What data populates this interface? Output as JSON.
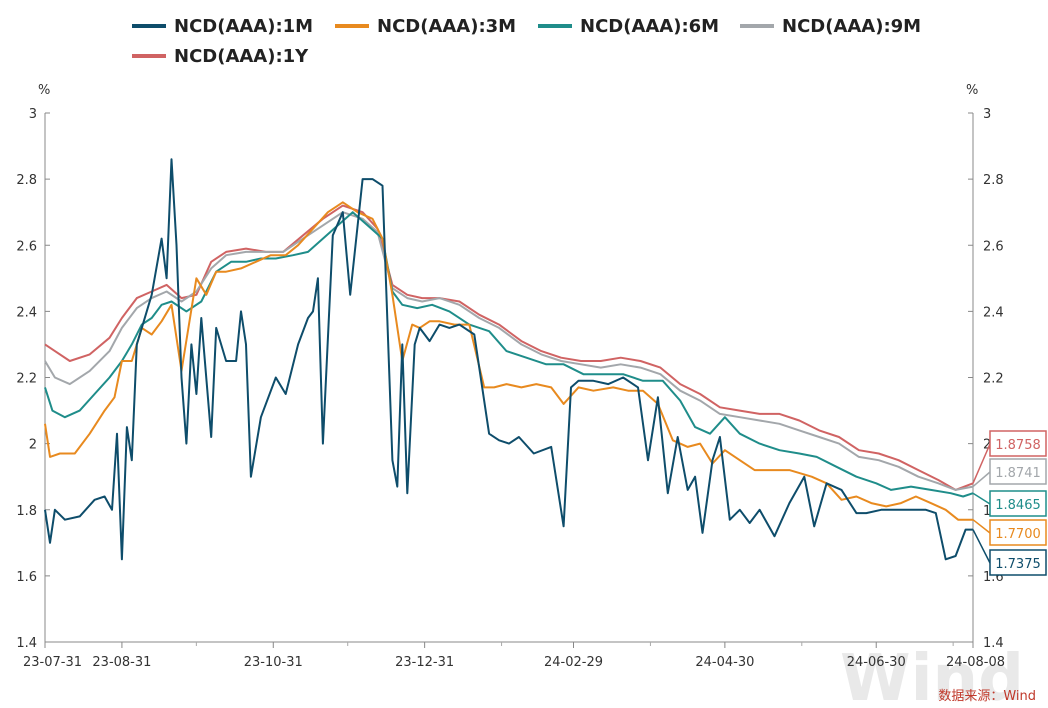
{
  "chart_data": {
    "type": "line",
    "title": "",
    "y_unit": "%",
    "ylim": [
      1.4,
      3.0
    ],
    "y_ticks": [
      "1.4",
      "1.6",
      "1.8",
      "2",
      "2.2",
      "2.4",
      "2.6",
      "2.8",
      "3"
    ],
    "x_tick_labels": [
      "23-07-31",
      "23-08-31",
      "23-10-31",
      "23-12-31",
      "24-02-29",
      "24-04-30",
      "24-06-30",
      "24-08-08"
    ],
    "x_tick_dates": [
      "2023-07-31",
      "2023-08-31",
      "2023-10-31",
      "2023-12-31",
      "2024-02-29",
      "2024-04-30",
      "2024-06-30",
      "2024-08-08"
    ],
    "x_range": [
      "2023-07-31",
      "2024-08-08"
    ],
    "legend_position": "top",
    "grid": false,
    "series": [
      {
        "name": "NCD(AAA):1M",
        "color": "#0e4d6b",
        "end_label": "1.7375",
        "x": [
          "2023-07-31",
          "2023-08-02",
          "2023-08-04",
          "2023-08-08",
          "2023-08-14",
          "2023-08-20",
          "2023-08-24",
          "2023-08-27",
          "2023-08-29",
          "2023-08-31",
          "2023-09-02",
          "2023-09-04",
          "2023-09-06",
          "2023-09-08",
          "2023-09-12",
          "2023-09-16",
          "2023-09-18",
          "2023-09-20",
          "2023-09-22",
          "2023-09-24",
          "2023-09-26",
          "2023-09-28",
          "2023-09-30",
          "2023-10-02",
          "2023-10-06",
          "2023-10-08",
          "2023-10-12",
          "2023-10-16",
          "2023-10-18",
          "2023-10-20",
          "2023-10-22",
          "2023-10-26",
          "2023-11-01",
          "2023-11-05",
          "2023-11-10",
          "2023-11-14",
          "2023-11-16",
          "2023-11-18",
          "2023-11-20",
          "2023-11-24",
          "2023-11-28",
          "2023-12-01",
          "2023-12-06",
          "2023-12-10",
          "2023-12-14",
          "2023-12-18",
          "2023-12-20",
          "2023-12-22",
          "2023-12-24",
          "2023-12-27",
          "2023-12-29",
          "2024-01-02",
          "2024-01-06",
          "2024-01-10",
          "2024-01-14",
          "2024-01-20",
          "2024-01-26",
          "2024-01-30",
          "2024-02-03",
          "2024-02-07",
          "2024-02-13",
          "2024-02-20",
          "2024-02-25",
          "2024-02-28",
          "2024-03-02",
          "2024-03-08",
          "2024-03-14",
          "2024-03-20",
          "2024-03-26",
          "2024-03-30",
          "2024-04-03",
          "2024-04-07",
          "2024-04-11",
          "2024-04-15",
          "2024-04-18",
          "2024-04-21",
          "2024-04-25",
          "2024-04-28",
          "2024-05-02",
          "2024-05-06",
          "2024-05-10",
          "2024-05-14",
          "2024-05-20",
          "2024-05-26",
          "2024-06-01",
          "2024-06-05",
          "2024-06-10",
          "2024-06-16",
          "2024-06-22",
          "2024-06-26",
          "2024-07-02",
          "2024-07-08",
          "2024-07-14",
          "2024-07-20",
          "2024-07-24",
          "2024-07-28",
          "2024-08-01",
          "2024-08-05",
          "2024-08-08"
        ],
        "y": [
          1.8,
          1.7,
          1.8,
          1.77,
          1.78,
          1.83,
          1.84,
          1.8,
          2.03,
          1.65,
          2.05,
          1.95,
          2.3,
          2.35,
          2.45,
          2.62,
          2.5,
          2.86,
          2.6,
          2.2,
          2.0,
          2.3,
          2.15,
          2.38,
          2.02,
          2.35,
          2.25,
          2.25,
          2.4,
          2.3,
          1.9,
          2.08,
          2.2,
          2.15,
          2.3,
          2.38,
          2.4,
          2.5,
          2.0,
          2.63,
          2.7,
          2.45,
          2.8,
          2.8,
          2.78,
          1.95,
          1.87,
          2.3,
          1.85,
          2.3,
          2.35,
          2.31,
          2.36,
          2.35,
          2.36,
          2.33,
          2.03,
          2.01,
          2.0,
          2.02,
          1.97,
          1.99,
          1.75,
          2.17,
          2.19,
          2.19,
          2.18,
          2.2,
          2.17,
          1.95,
          2.14,
          1.85,
          2.02,
          1.86,
          1.9,
          1.73,
          1.95,
          2.02,
          1.77,
          1.8,
          1.76,
          1.8,
          1.72,
          1.82,
          1.9,
          1.75,
          1.88,
          1.86,
          1.79,
          1.79,
          1.8,
          1.8,
          1.8,
          1.8,
          1.79,
          1.65,
          1.66,
          1.74,
          1.74
        ]
      },
      {
        "name": "NCD(AAA):3M",
        "color": "#e88a1f",
        "end_label": "1.7700",
        "x": [
          "2023-07-31",
          "2023-08-02",
          "2023-08-06",
          "2023-08-12",
          "2023-08-18",
          "2023-08-24",
          "2023-08-28",
          "2023-08-31",
          "2023-09-04",
          "2023-09-08",
          "2023-09-12",
          "2023-09-16",
          "2023-09-20",
          "2023-09-24",
          "2023-09-30",
          "2023-10-04",
          "2023-10-08",
          "2023-10-12",
          "2023-10-18",
          "2023-10-24",
          "2023-10-30",
          "2023-11-05",
          "2023-11-10",
          "2023-11-16",
          "2023-11-22",
          "2023-11-28",
          "2023-12-04",
          "2023-12-10",
          "2023-12-14",
          "2023-12-18",
          "2023-12-22",
          "2023-12-26",
          "2023-12-29",
          "2024-01-02",
          "2024-01-06",
          "2024-01-12",
          "2024-01-18",
          "2024-01-24",
          "2024-01-28",
          "2024-02-02",
          "2024-02-08",
          "2024-02-14",
          "2024-02-20",
          "2024-02-25",
          "2024-03-02",
          "2024-03-08",
          "2024-03-16",
          "2024-03-22",
          "2024-03-28",
          "2024-04-03",
          "2024-04-09",
          "2024-04-15",
          "2024-04-20",
          "2024-04-25",
          "2024-04-30",
          "2024-05-06",
          "2024-05-12",
          "2024-05-18",
          "2024-05-26",
          "2024-06-04",
          "2024-06-10",
          "2024-06-16",
          "2024-06-22",
          "2024-06-28",
          "2024-07-04",
          "2024-07-10",
          "2024-07-16",
          "2024-07-22",
          "2024-07-28",
          "2024-08-02",
          "2024-08-08"
        ],
        "y": [
          2.06,
          1.96,
          1.97,
          1.97,
          2.03,
          2.1,
          2.14,
          2.25,
          2.25,
          2.35,
          2.33,
          2.37,
          2.42,
          2.22,
          2.5,
          2.45,
          2.52,
          2.52,
          2.53,
          2.55,
          2.57,
          2.57,
          2.6,
          2.65,
          2.7,
          2.73,
          2.7,
          2.68,
          2.62,
          2.45,
          2.25,
          2.36,
          2.35,
          2.37,
          2.37,
          2.36,
          2.36,
          2.17,
          2.17,
          2.18,
          2.17,
          2.18,
          2.17,
          2.12,
          2.17,
          2.16,
          2.17,
          2.16,
          2.16,
          2.12,
          2.01,
          1.99,
          2.0,
          1.94,
          1.98,
          1.95,
          1.92,
          1.92,
          1.92,
          1.9,
          1.88,
          1.83,
          1.84,
          1.82,
          1.81,
          1.82,
          1.84,
          1.82,
          1.8,
          1.77,
          1.77
        ]
      },
      {
        "name": "NCD(AAA):6M",
        "color": "#1f8d8a",
        "end_label": "1.8465",
        "x": [
          "2023-07-31",
          "2023-08-03",
          "2023-08-08",
          "2023-08-14",
          "2023-08-20",
          "2023-08-26",
          "2023-08-31",
          "2023-09-04",
          "2023-09-08",
          "2023-09-12",
          "2023-09-16",
          "2023-09-20",
          "2023-09-26",
          "2023-10-02",
          "2023-10-08",
          "2023-10-14",
          "2023-10-20",
          "2023-10-26",
          "2023-11-01",
          "2023-11-08",
          "2023-11-14",
          "2023-11-20",
          "2023-11-26",
          "2023-12-02",
          "2023-12-08",
          "2023-12-14",
          "2023-12-18",
          "2023-12-22",
          "2023-12-28",
          "2024-01-03",
          "2024-01-10",
          "2024-01-18",
          "2024-01-26",
          "2024-02-02",
          "2024-02-10",
          "2024-02-18",
          "2024-02-25",
          "2024-03-04",
          "2024-03-12",
          "2024-03-20",
          "2024-03-28",
          "2024-04-05",
          "2024-04-12",
          "2024-04-18",
          "2024-04-24",
          "2024-04-30",
          "2024-05-06",
          "2024-05-14",
          "2024-05-22",
          "2024-05-30",
          "2024-06-06",
          "2024-06-14",
          "2024-06-22",
          "2024-06-30",
          "2024-07-06",
          "2024-07-14",
          "2024-07-22",
          "2024-07-30",
          "2024-08-04",
          "2024-08-08"
        ],
        "y": [
          2.17,
          2.1,
          2.08,
          2.1,
          2.15,
          2.2,
          2.25,
          2.3,
          2.36,
          2.38,
          2.42,
          2.43,
          2.4,
          2.43,
          2.52,
          2.55,
          2.55,
          2.56,
          2.56,
          2.57,
          2.58,
          2.62,
          2.66,
          2.7,
          2.66,
          2.62,
          2.46,
          2.42,
          2.41,
          2.42,
          2.4,
          2.36,
          2.34,
          2.28,
          2.26,
          2.24,
          2.24,
          2.21,
          2.21,
          2.21,
          2.19,
          2.19,
          2.13,
          2.05,
          2.03,
          2.08,
          2.03,
          2.0,
          1.98,
          1.97,
          1.96,
          1.93,
          1.9,
          1.88,
          1.86,
          1.87,
          1.86,
          1.85,
          1.84,
          1.85
        ]
      },
      {
        "name": "NCD(AAA):9M",
        "color": "#a3a7ab",
        "end_label": "1.8741",
        "x": [
          "2023-07-31",
          "2023-08-04",
          "2023-08-10",
          "2023-08-18",
          "2023-08-26",
          "2023-08-31",
          "2023-09-06",
          "2023-09-12",
          "2023-09-18",
          "2023-09-24",
          "2023-09-30",
          "2023-10-06",
          "2023-10-12",
          "2023-10-20",
          "2023-10-28",
          "2023-11-04",
          "2023-11-12",
          "2023-11-20",
          "2023-11-28",
          "2023-12-06",
          "2023-12-12",
          "2023-12-18",
          "2023-12-24",
          "2023-12-30",
          "2024-01-06",
          "2024-01-14",
          "2024-01-22",
          "2024-01-30",
          "2024-02-08",
          "2024-02-16",
          "2024-02-24",
          "2024-03-03",
          "2024-03-11",
          "2024-03-19",
          "2024-03-27",
          "2024-04-04",
          "2024-04-12",
          "2024-04-20",
          "2024-04-28",
          "2024-05-06",
          "2024-05-14",
          "2024-05-22",
          "2024-05-30",
          "2024-06-07",
          "2024-06-15",
          "2024-06-23",
          "2024-07-01",
          "2024-07-09",
          "2024-07-17",
          "2024-07-25",
          "2024-08-01",
          "2024-08-08"
        ],
        "y": [
          2.25,
          2.2,
          2.18,
          2.22,
          2.28,
          2.35,
          2.41,
          2.44,
          2.46,
          2.43,
          2.46,
          2.53,
          2.57,
          2.58,
          2.58,
          2.58,
          2.62,
          2.66,
          2.7,
          2.68,
          2.64,
          2.47,
          2.44,
          2.43,
          2.44,
          2.42,
          2.38,
          2.35,
          2.3,
          2.27,
          2.25,
          2.24,
          2.23,
          2.24,
          2.23,
          2.21,
          2.16,
          2.13,
          2.09,
          2.08,
          2.07,
          2.06,
          2.04,
          2.02,
          2.0,
          1.96,
          1.95,
          1.93,
          1.9,
          1.88,
          1.86,
          1.87
        ]
      },
      {
        "name": "NCD(AAA):1Y",
        "color": "#d06363",
        "end_label": "1.8758",
        "x": [
          "2023-07-31",
          "2023-08-04",
          "2023-08-10",
          "2023-08-18",
          "2023-08-26",
          "2023-08-31",
          "2023-09-06",
          "2023-09-12",
          "2023-09-18",
          "2023-09-24",
          "2023-09-30",
          "2023-10-06",
          "2023-10-12",
          "2023-10-20",
          "2023-10-28",
          "2023-11-04",
          "2023-11-12",
          "2023-11-20",
          "2023-11-28",
          "2023-12-06",
          "2023-12-12",
          "2023-12-18",
          "2023-12-24",
          "2023-12-30",
          "2024-01-06",
          "2024-01-14",
          "2024-01-22",
          "2024-01-30",
          "2024-02-08",
          "2024-02-16",
          "2024-02-24",
          "2024-03-03",
          "2024-03-11",
          "2024-03-19",
          "2024-03-27",
          "2024-04-04",
          "2024-04-12",
          "2024-04-20",
          "2024-04-28",
          "2024-05-06",
          "2024-05-14",
          "2024-05-22",
          "2024-05-30",
          "2024-06-07",
          "2024-06-15",
          "2024-06-23",
          "2024-07-01",
          "2024-07-09",
          "2024-07-17",
          "2024-07-25",
          "2024-08-01",
          "2024-08-08"
        ],
        "y": [
          2.3,
          2.28,
          2.25,
          2.27,
          2.32,
          2.38,
          2.44,
          2.46,
          2.48,
          2.44,
          2.45,
          2.55,
          2.58,
          2.59,
          2.58,
          2.58,
          2.63,
          2.68,
          2.72,
          2.7,
          2.65,
          2.48,
          2.45,
          2.44,
          2.44,
          2.43,
          2.39,
          2.36,
          2.31,
          2.28,
          2.26,
          2.25,
          2.25,
          2.26,
          2.25,
          2.23,
          2.18,
          2.15,
          2.11,
          2.1,
          2.09,
          2.09,
          2.07,
          2.04,
          2.02,
          1.98,
          1.97,
          1.95,
          1.92,
          1.89,
          1.86,
          1.88
        ]
      }
    ]
  },
  "source_label": "数据来源：Wind",
  "watermark": "Wind"
}
